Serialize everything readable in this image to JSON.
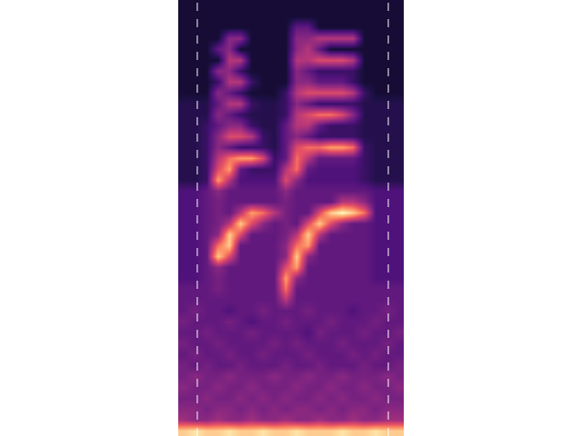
{
  "chart_data": {
    "type": "heatmap",
    "z": [
      [
        1,
        1,
        1,
        1,
        1,
        1,
        1,
        1,
        1,
        1,
        1,
        1,
        1,
        1,
        1,
        1,
        1,
        1,
        1,
        1
      ],
      [
        1,
        1,
        1,
        1,
        1,
        1,
        1,
        1,
        1,
        1,
        1,
        1,
        1,
        1,
        1,
        1,
        1,
        1,
        1,
        1
      ],
      [
        1,
        1,
        1,
        1,
        1,
        1,
        1,
        1,
        1,
        1,
        3,
        3,
        1,
        1,
        1,
        1,
        1,
        1,
        1,
        1
      ],
      [
        1,
        1,
        1,
        1,
        4,
        4,
        1,
        1,
        1,
        1,
        4,
        4,
        5,
        5,
        5,
        5,
        1,
        1,
        1,
        1
      ],
      [
        1,
        1,
        1,
        3,
        4,
        1,
        1,
        1,
        1,
        1,
        4,
        5,
        3,
        1,
        1,
        1,
        1,
        1,
        1,
        1
      ],
      [
        1,
        1,
        1,
        1,
        5,
        5,
        1,
        1,
        1,
        1,
        5,
        5,
        6,
        6,
        6,
        5,
        1,
        1,
        1,
        1
      ],
      [
        1,
        1,
        1,
        4,
        4,
        2,
        1,
        1,
        1,
        1,
        4,
        3,
        2,
        2,
        2,
        2,
        1,
        1,
        1,
        1
      ],
      [
        1,
        1,
        1,
        2,
        5,
        5,
        2,
        1,
        1,
        1,
        4,
        4,
        3,
        3,
        3,
        2,
        1,
        1,
        1,
        1
      ],
      [
        1,
        1,
        1,
        4,
        3,
        2,
        1,
        1,
        1,
        2,
        5,
        6,
        6,
        6,
        6,
        5,
        2,
        1,
        1,
        1
      ],
      [
        1.5,
        1.5,
        1.5,
        3,
        5,
        5,
        2,
        1.5,
        1.5,
        2,
        4,
        3,
        2,
        2,
        2,
        2,
        1.5,
        1.5,
        1.5,
        1.5
      ],
      [
        1.5,
        1.5,
        1.5,
        4,
        3,
        2,
        1.5,
        1.5,
        1.5,
        2,
        5,
        6,
        7,
        7,
        6,
        4,
        1.5,
        1.5,
        1.5,
        1.5
      ],
      [
        1.5,
        1.5,
        2,
        3,
        4,
        4,
        2,
        1.5,
        1.5,
        3,
        5,
        5,
        3,
        2,
        2,
        2,
        1.5,
        1.5,
        1.5,
        1.5
      ],
      [
        1.5,
        1.5,
        2,
        4,
        6,
        6,
        5,
        2,
        1.5,
        3,
        4,
        3,
        2,
        2,
        2,
        2,
        1.5,
        1.5,
        1.5,
        1.5
      ],
      [
        1.5,
        1.5,
        2,
        4,
        3,
        2,
        2,
        2,
        1.5,
        3,
        6,
        7,
        7,
        8,
        8,
        7,
        2,
        1.5,
        1.5,
        1.5
      ],
      [
        1.5,
        1.5,
        2,
        5,
        7,
        8,
        8,
        6,
        2,
        3,
        7,
        5,
        3,
        3,
        3,
        3,
        2,
        1.5,
        1.5,
        1.5
      ],
      [
        1.5,
        1.5,
        2,
        6,
        8,
        3,
        2,
        2,
        2,
        5,
        7,
        3,
        2.5,
        2.5,
        2.5,
        2.5,
        2,
        1.5,
        1.5,
        1.5
      ],
      [
        1.5,
        1.5,
        2,
        8,
        5,
        2.5,
        2.5,
        2.5,
        2.5,
        6,
        4,
        2.5,
        2.5,
        2.5,
        2.5,
        2.5,
        2,
        1.5,
        1.5,
        1.5
      ],
      [
        2.5,
        2.5,
        3,
        4,
        3,
        3,
        3,
        3,
        3,
        4,
        3,
        3,
        3,
        3,
        3,
        3,
        3,
        2.5,
        2.5,
        2.5
      ],
      [
        2.5,
        2.5,
        3,
        3.5,
        3,
        3,
        3,
        3,
        3,
        3.5,
        3,
        3,
        3,
        3,
        5,
        5,
        4,
        2.5,
        2.5,
        2.5
      ],
      [
        2.5,
        2.5,
        3,
        3.5,
        3,
        5,
        8,
        7,
        5,
        3.5,
        3,
        3,
        6,
        9,
        10,
        9,
        7,
        2.5,
        2.5,
        2.5
      ],
      [
        2.5,
        2.5,
        3,
        3.5,
        5,
        9,
        6,
        4,
        3,
        3.5,
        3,
        6,
        9,
        6,
        4,
        3,
        3,
        2.5,
        2.5,
        2.5
      ],
      [
        2.5,
        2.5,
        3,
        4,
        9,
        6,
        3,
        3,
        3,
        3.5,
        5,
        9,
        5,
        3,
        3,
        3,
        3,
        2.5,
        2.5,
        2.5
      ],
      [
        2.5,
        2.5,
        3,
        7,
        9,
        3,
        3,
        3,
        3,
        4,
        7,
        8,
        3,
        3,
        3,
        3,
        3,
        2.5,
        2.5,
        2.5
      ],
      [
        2.5,
        2.5,
        3,
        9,
        6,
        3,
        3,
        3,
        3,
        4,
        9,
        4,
        3,
        3,
        3,
        3,
        3,
        2.5,
        2.5,
        2.5
      ],
      [
        2.5,
        2.5,
        3,
        4,
        3,
        3,
        3,
        3,
        3,
        6,
        8,
        3,
        3,
        3,
        3,
        3,
        3,
        2.5,
        2.5,
        2.5
      ],
      [
        2.5,
        2.5,
        3,
        3.5,
        3,
        3,
        3,
        3,
        3,
        8,
        4,
        3,
        3,
        3,
        3,
        3,
        3,
        2.5,
        2.5,
        2.5
      ],
      [
        3,
        3,
        3,
        3.5,
        3,
        3,
        3,
        3,
        3,
        7,
        3,
        3,
        3,
        3,
        3,
        3,
        3,
        3,
        3,
        3
      ],
      [
        3,
        3,
        3,
        3,
        3,
        3,
        3,
        3,
        3,
        5,
        3,
        3,
        3,
        3,
        3,
        3,
        3,
        3,
        3,
        3
      ],
      [
        3,
        3.5,
        3,
        3,
        2.5,
        3,
        3,
        3.5,
        3,
        3,
        3,
        3.5,
        3,
        3,
        3,
        2.5,
        3,
        3,
        3.5,
        3
      ],
      [
        3.5,
        3,
        3,
        3,
        3.5,
        3,
        2.5,
        3,
        3,
        3.5,
        3,
        3,
        3,
        3.5,
        3,
        3,
        3,
        3.5,
        3,
        3
      ],
      [
        3,
        3,
        3.5,
        3,
        3,
        3,
        3.5,
        3,
        3,
        3,
        3,
        2.5,
        3.5,
        3,
        3,
        3,
        3.5,
        3,
        3,
        3.5
      ],
      [
        3.5,
        3,
        3,
        3.5,
        3,
        3,
        3,
        3,
        3.5,
        3,
        3.5,
        3,
        3,
        3,
        3.5,
        3,
        3,
        3,
        3.5,
        3
      ],
      [
        3,
        3.5,
        3,
        3,
        3.5,
        3,
        3,
        3.5,
        3,
        3,
        3,
        3.5,
        3,
        3,
        3,
        3.5,
        3,
        3.5,
        3,
        3
      ],
      [
        3.5,
        3,
        3.5,
        3,
        3,
        3.5,
        3,
        3,
        3,
        3.5,
        3,
        3,
        3.5,
        3,
        3,
        3,
        3.5,
        3,
        3,
        3.5
      ],
      [
        3.5,
        4,
        3.5,
        3.5,
        4,
        3.5,
        3.5,
        3.5,
        4,
        3.5,
        3.5,
        4,
        3.5,
        3.5,
        4,
        3.5,
        3.5,
        3.5,
        4,
        3.5
      ],
      [
        4,
        3.5,
        3.5,
        4,
        3.5,
        3.5,
        4,
        3.5,
        3.5,
        3.5,
        4,
        3.5,
        3.5,
        4,
        3.5,
        3.5,
        4,
        3.5,
        3.5,
        4
      ],
      [
        3.5,
        3.5,
        4,
        3.5,
        3.5,
        4,
        3.5,
        4,
        3.5,
        4,
        3.5,
        3.5,
        4,
        3.5,
        4,
        3.5,
        3.5,
        4,
        3.5,
        3.5
      ],
      [
        4,
        4,
        3.5,
        4,
        4,
        3.5,
        4,
        3.5,
        4,
        3.5,
        4,
        4,
        3.5,
        4,
        3.5,
        4,
        4,
        3.5,
        4,
        4
      ],
      [
        4.5,
        4,
        4,
        4.5,
        4,
        4,
        4.5,
        4,
        4,
        4.5,
        4,
        4,
        4.5,
        4,
        4,
        4.5,
        4,
        4,
        4.5,
        4.5
      ],
      [
        9,
        9.5,
        9,
        9,
        9.5,
        9,
        9,
        9.5,
        9,
        9,
        9.5,
        9,
        9,
        9,
        9.5,
        9,
        9,
        9.5,
        9,
        9
      ]
    ],
    "zlim": [
      0,
      10
    ],
    "xlim": [
      -0.5,
      19.5
    ],
    "ylim": [
      39.5,
      -0.5
    ],
    "vlines": [
      1.19,
      18.13
    ],
    "line_style": "dashed",
    "tick_labels": false,
    "grid": false
  }
}
